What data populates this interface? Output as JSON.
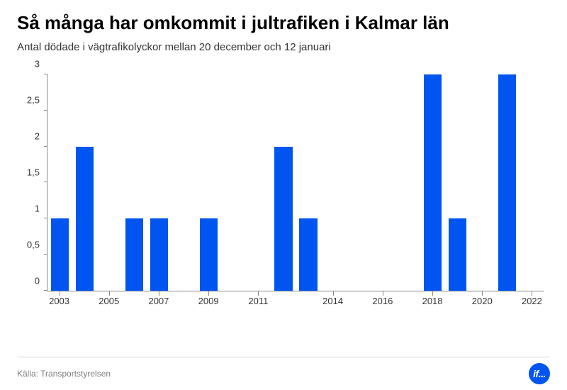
{
  "header": {
    "title": "Så många har omkommit i jultrafiken i Kalmar län",
    "subtitle": "Antal dödade i vägtrafikolyckor mellan 20 december och 12 januari"
  },
  "chart": {
    "type": "bar",
    "bar_color": "#0054f0",
    "axis_color": "#888888",
    "background_color": "#ffffff",
    "title_fontsize": 26,
    "subtitle_fontsize": 15,
    "tick_fontsize": 13,
    "ylim": [
      0,
      3
    ],
    "ytick_step": 0.5,
    "y_ticks": [
      "0",
      "0,5",
      "1",
      "1,5",
      "2",
      "2,5",
      "3"
    ],
    "years": [
      2003,
      2004,
      2005,
      2006,
      2007,
      2008,
      2009,
      2010,
      2011,
      2012,
      2013,
      2014,
      2015,
      2016,
      2017,
      2018,
      2019,
      2020,
      2021,
      2022
    ],
    "values": [
      1,
      2,
      0,
      1,
      1,
      0,
      1,
      0,
      0,
      2,
      1,
      0,
      0,
      0,
      0,
      3,
      1,
      0,
      3,
      0
    ],
    "x_labels_visible": [
      2003,
      2005,
      2007,
      2009,
      2011,
      2014,
      2016,
      2018,
      2020,
      2022
    ],
    "bar_width_pct": 72
  },
  "footer": {
    "source": "Källa: Transportstyrelsen",
    "logo_text": "if..."
  }
}
